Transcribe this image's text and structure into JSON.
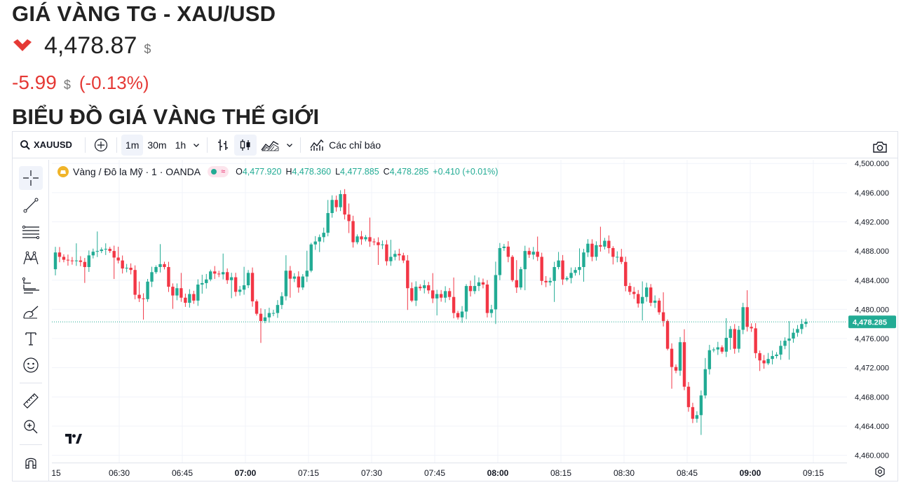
{
  "header": {
    "title": "GIÁ VÀNG TG - XAU/USD",
    "price": "4,478.87",
    "price_unit": "$",
    "change": "-5.99",
    "change_unit": "$",
    "change_pct": "(-0.13%)",
    "section_title": "BIỂU ĐỒ GIÁ VÀNG THẾ GIỚI"
  },
  "toolbar": {
    "symbol": "XAUUSD",
    "intervals": [
      "1m",
      "30m",
      "1h"
    ],
    "active_interval": "1m",
    "indicators_label": "Các chỉ báo"
  },
  "legend": {
    "name": "Vàng / Đô la Mỹ · 1 · OANDA",
    "pill_text": "≈",
    "o_label": "O",
    "o": "4,477.920",
    "h_label": "H",
    "h": "4,478.360",
    "l_label": "L",
    "l": "4,477.885",
    "c_label": "C",
    "c": "4,478.285",
    "change": "+0.410 (+0.01%)"
  },
  "colors": {
    "up": "#22ab94",
    "down": "#f23645",
    "change_negative": "#e53935"
  },
  "chart_data": {
    "type": "candlestick",
    "y_ticks": [
      "4,500.000",
      "4,496.000",
      "4,492.000",
      "4,488.000",
      "4,484.000",
      "4,480.000",
      "4,476.000",
      "4,472.000",
      "4,468.000",
      "4,464.000",
      "4,460.000"
    ],
    "ylim": [
      4459,
      4500.5
    ],
    "x_ticks": [
      {
        "label": "15",
        "bold": false
      },
      {
        "label": "06:30",
        "bold": false
      },
      {
        "label": "06:45",
        "bold": false
      },
      {
        "label": "07:00",
        "bold": true
      },
      {
        "label": "07:15",
        "bold": false
      },
      {
        "label": "07:30",
        "bold": false
      },
      {
        "label": "07:45",
        "bold": false
      },
      {
        "label": "08:00",
        "bold": true
      },
      {
        "label": "08:15",
        "bold": false
      },
      {
        "label": "08:30",
        "bold": false
      },
      {
        "label": "08:45",
        "bold": false
      },
      {
        "label": "09:00",
        "bold": true
      },
      {
        "label": "09:15",
        "bold": false
      }
    ],
    "current_price_label": "4,478.285",
    "current_price": 4478.285,
    "closes": [
      4487.8,
      4487.2,
      4486.8,
      4486.7,
      4486.6,
      4486.7,
      4486.5,
      4485.8,
      4487.4,
      4487.9,
      4488.0,
      4488.2,
      4488.3,
      4488.0,
      4487.1,
      4486.7,
      4485.6,
      4485.7,
      4485.4,
      4482.0,
      4481.5,
      4481.4,
      4483.8,
      4485.1,
      4485.8,
      4486.2,
      4485.8,
      4483.1,
      4481.9,
      4482.9,
      4481.6,
      4480.9,
      4482.1,
      4481.2,
      4483.4,
      4483.6,
      4484.1,
      4485.2,
      4484.9,
      4484.8,
      4485.1,
      4484.0,
      4484.4,
      4482.4,
      4482.7,
      4483.3,
      4485.0,
      4481.1,
      4479.4,
      4478.4,
      4478.9,
      4479.5,
      4479.5,
      4480.6,
      4481.8,
      4485.3,
      4484.2,
      4484.5,
      4483.0,
      4484.5,
      4485.3,
      4488.9,
      4489.3,
      4489.9,
      4490.5,
      4493.2,
      4495.0,
      4494.0,
      4495.8,
      4493.0,
      4492.1,
      4489.2,
      4490.0,
      4489.6,
      4489.9,
      4489.3,
      4489.2,
      4488.8,
      4488.9,
      4486.6,
      4487.2,
      4487.6,
      4487.4,
      4486.7,
      4482.9,
      4481.2,
      4483.1,
      4482.9,
      4483.3,
      4482.6,
      4481.5,
      4482.1,
      4481.6,
      4482.5,
      4481.7,
      4479.5,
      4478.9,
      4479.7,
      4483.2,
      4482.5,
      4483.2,
      4483.7,
      4483.4,
      4479.5,
      4480.0,
      4484.7,
      4488.4,
      4488.6,
      4487.2,
      4484.0,
      4483.0,
      4485.5,
      4488.0,
      4487.5,
      4487.9,
      4487.2,
      4483.9,
      4483.7,
      4483.9,
      4485.8,
      4486.7,
      4484.1,
      4484.3,
      4485.0,
      4485.4,
      4485.8,
      4487.8,
      4489.0,
      4487.2,
      4488.8,
      4488.6,
      4489.4,
      4488.4,
      4487.2,
      4487.2,
      4486.5,
      4483.2,
      4482.4,
      4482.1,
      4480.8,
      4481.7,
      4483.0,
      4480.9,
      4481.2,
      4479.6,
      4478.4,
      4474.6,
      4472.1,
      4471.6,
      4475.5,
      4469.4,
      4466.6,
      4465.0,
      4465.5,
      4468.2,
      4471.8,
      4474.4,
      4474.5,
      4474.8,
      4474.2,
      4476.1,
      4477.3,
      4474.6,
      4477.2,
      4480.3,
      4477.6,
      4477.4,
      4474.0,
      4473.0,
      4472.6,
      4473.2,
      4473.6,
      4473.8,
      4475.0,
      4475.7,
      4476.0,
      4476.8,
      4477.3,
      4478.0,
      4478.3
    ],
    "open": 4485.5
  }
}
